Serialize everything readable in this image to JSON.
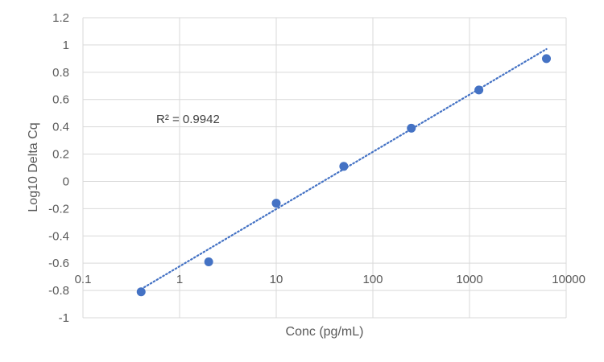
{
  "chart_data": {
    "type": "scatter",
    "title": "",
    "xlabel": "Conc (pg/mL)",
    "ylabel": "Log10 Delta Cq",
    "x_scale": "log",
    "xlim": [
      0.1,
      10000
    ],
    "ylim": [
      -1,
      1.2
    ],
    "x_ticks": [
      0.1,
      1,
      10,
      100,
      1000,
      10000
    ],
    "x_tick_labels": [
      "0.1",
      "1",
      "10",
      "100",
      "1000",
      "10000"
    ],
    "y_ticks": [
      1.2,
      1,
      0.8,
      0.6,
      0.4,
      0.2,
      0,
      -0.2,
      -0.4,
      -0.6,
      -0.8,
      -1
    ],
    "y_tick_labels": [
      "1.2",
      "1",
      "0.8",
      "0.6",
      "0.4",
      "0.2",
      "0",
      "-0.2",
      "-0.4",
      "-0.6",
      "-0.8",
      "-1"
    ],
    "grid": true,
    "legend": "none",
    "series": [
      {
        "x": [
          0.4,
          2,
          10,
          50,
          250,
          1250,
          6250
        ],
        "y": [
          -0.81,
          -0.59,
          -0.16,
          0.11,
          0.39,
          0.67,
          0.9
        ],
        "color": "#4472C4"
      }
    ],
    "trendline": {
      "type": "logarithmic",
      "style": "dotted",
      "color": "#4472C4",
      "x_range": [
        0.4,
        6250
      ],
      "y_range": [
        -0.79,
        0.97
      ]
    },
    "annotations": [
      {
        "text": "R² = 0.9942"
      }
    ]
  }
}
